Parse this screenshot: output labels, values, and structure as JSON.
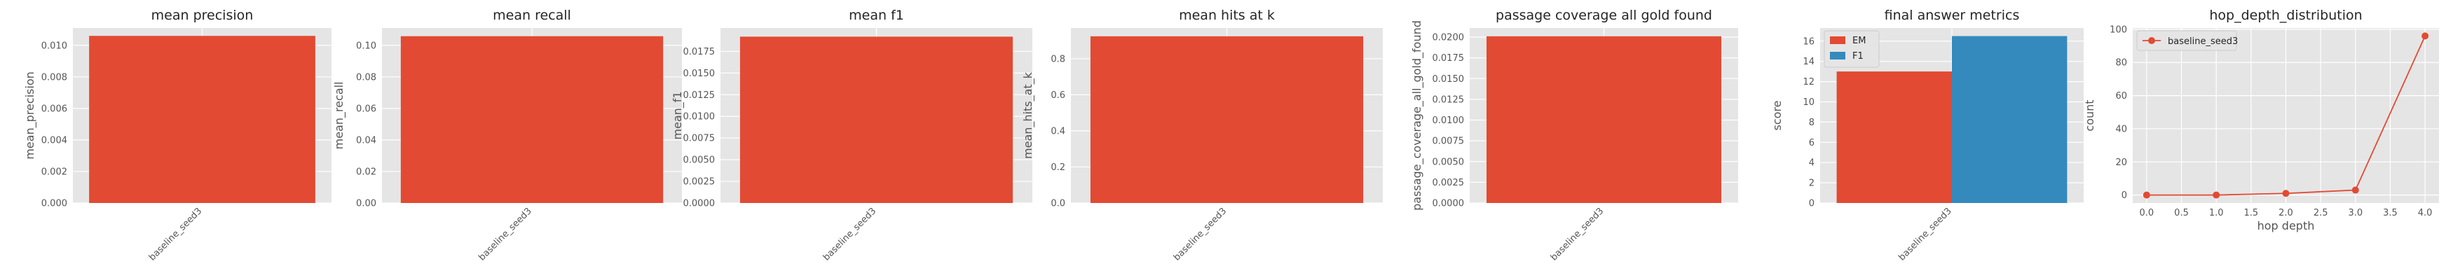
{
  "colors": {
    "bar": "#e24a33",
    "em": "#e24a33",
    "f1": "#348abd",
    "panel_bg": "#e5e5e5",
    "grid": "#ffffff"
  },
  "chart_data": [
    {
      "type": "bar",
      "title": "mean precision",
      "ylabel": "mean_precision",
      "categories": [
        "baseline_seed3"
      ],
      "values": [
        0.0106
      ],
      "ylim": [
        0,
        0.0111
      ],
      "yticks": [
        "0.000",
        "0.002",
        "0.004",
        "0.006",
        "0.008",
        "0.010"
      ],
      "grid": true
    },
    {
      "type": "bar",
      "title": "mean recall",
      "ylabel": "mean_recall",
      "categories": [
        "baseline_seed3"
      ],
      "values": [
        0.1058
      ],
      "ylim": [
        0,
        0.111
      ],
      "yticks": [
        "0.00",
        "0.02",
        "0.04",
        "0.06",
        "0.08",
        "0.10"
      ],
      "grid": true
    },
    {
      "type": "bar",
      "title": "mean f1",
      "ylabel": "mean_f1",
      "categories": [
        "baseline_seed3"
      ],
      "values": [
        0.0192
      ],
      "ylim": [
        0,
        0.0202
      ],
      "yticks": [
        "0.0000",
        "0.0025",
        "0.0050",
        "0.0075",
        "0.0100",
        "0.0125",
        "0.0150",
        "0.0175"
      ],
      "grid": true
    },
    {
      "type": "bar",
      "title": "mean hits at k",
      "ylabel": "mean_hits_at_k",
      "categories": [
        "baseline_seed3"
      ],
      "values": [
        0.924
      ],
      "ylim": [
        0,
        0.97
      ],
      "yticks": [
        "0.0",
        "0.2",
        "0.4",
        "0.6",
        "0.8"
      ],
      "grid": true
    },
    {
      "type": "bar",
      "title": "passage coverage all gold found",
      "ylabel": "passage_coverage_all_gold_found",
      "categories": [
        "baseline_seed3"
      ],
      "values": [
        0.0201
      ],
      "ylim": [
        0,
        0.0211
      ],
      "yticks": [
        "0.0000",
        "0.0025",
        "0.0050",
        "0.0075",
        "0.0100",
        "0.0125",
        "0.0150",
        "0.0175",
        "0.0200"
      ],
      "grid": true
    },
    {
      "type": "bar",
      "title": "final answer metrics",
      "ylabel": "score",
      "categories": [
        "baseline_seed3"
      ],
      "series": [
        {
          "name": "EM",
          "values": [
            13.0
          ]
        },
        {
          "name": "F1",
          "values": [
            16.5
          ]
        }
      ],
      "ylim": [
        0,
        17.3
      ],
      "yticks": [
        "0",
        "2",
        "4",
        "6",
        "8",
        "10",
        "12",
        "14",
        "16"
      ],
      "legend": "top-left",
      "grid": true
    },
    {
      "type": "line",
      "title": "hop_depth_distribution",
      "xlabel": "hop depth",
      "ylabel": "count",
      "series": [
        {
          "name": "baseline_seed3",
          "x": [
            0.0,
            1.0,
            2.0,
            3.0,
            4.0
          ],
          "y": [
            0,
            0,
            1,
            3,
            96
          ]
        }
      ],
      "xlim": [
        -0.2,
        4.2
      ],
      "ylim": [
        -4.8,
        100.8
      ],
      "xticks": [
        "0.0",
        "0.5",
        "1.0",
        "1.5",
        "2.0",
        "2.5",
        "3.0",
        "3.5",
        "4.0"
      ],
      "yticks": [
        "0",
        "20",
        "40",
        "60",
        "80",
        "100"
      ],
      "legend": "top-left",
      "grid": true
    }
  ]
}
